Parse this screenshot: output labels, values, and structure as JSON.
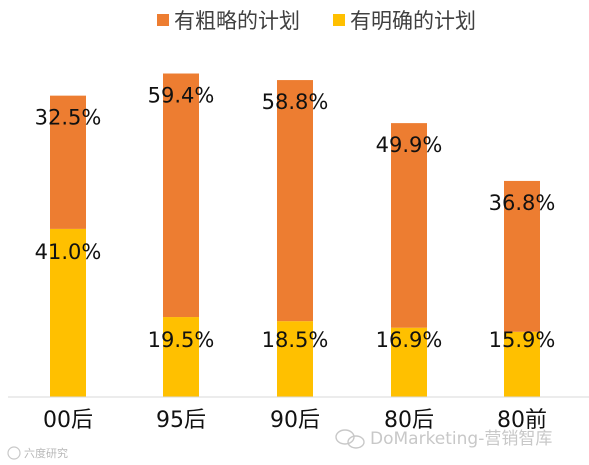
{
  "chart_data": {
    "type": "bar",
    "stacked": true,
    "categories": [
      "00后",
      "95后",
      "90后",
      "80后",
      "80前"
    ],
    "series": [
      {
        "name": "有明确的计划",
        "values": [
          41.0,
          19.5,
          18.5,
          16.9,
          15.9
        ],
        "color": "#FFC000"
      },
      {
        "name": "有粗略的计划",
        "values": [
          32.5,
          59.4,
          58.8,
          49.9,
          36.8
        ],
        "color": "#ED7D31"
      }
    ],
    "value_labels": {
      "有明确的计划": [
        "41.0%",
        "19.5%",
        "18.5%",
        "16.9%",
        "15.9%"
      ],
      "有粗略的计划": [
        "32.5%",
        "59.4%",
        "58.8%",
        "49.9%",
        "36.8%"
      ]
    },
    "ylim": [
      0,
      100
    ],
    "grid": false,
    "legend_position": "top"
  },
  "legend": {
    "items": [
      {
        "label": "有粗略的计划",
        "color": "#ED7D31"
      },
      {
        "label": "有明确的计划",
        "color": "#FFC000"
      }
    ]
  },
  "watermarks": {
    "bottom_left": "六度研究",
    "bottom_right": "DoMarketing-营销智库"
  }
}
